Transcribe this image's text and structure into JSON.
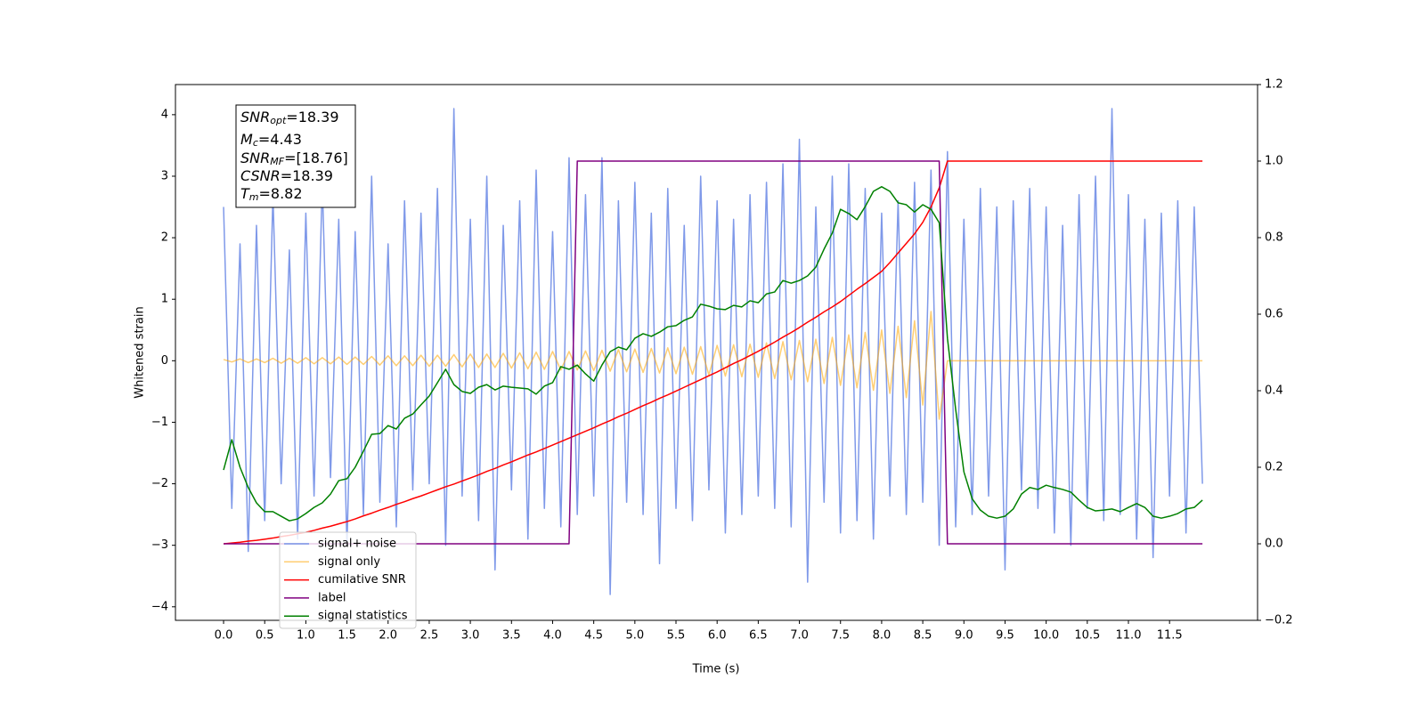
{
  "chart_data": {
    "type": "line",
    "xlabel": "Time (s)",
    "ylabel": "Whitened strain",
    "xlim": [
      -0.585,
      12.57
    ],
    "ylim": [
      -4.22,
      4.49
    ],
    "y2lim": [
      -0.2,
      1.2
    ],
    "xticks": [
      {
        "value": 0,
        "label": "0.0"
      },
      0.5,
      {
        "value": 1,
        "label": "1.0"
      },
      1.5,
      {
        "value": 2,
        "label": "2.0"
      },
      2.5,
      {
        "value": 3,
        "label": "3.0"
      },
      3.5,
      {
        "value": 4,
        "label": "4.0"
      },
      4.5,
      {
        "value": 5,
        "label": "5.0"
      },
      5.5,
      {
        "value": 6,
        "label": "6.0"
      },
      6.5,
      {
        "value": 7,
        "label": "7.0"
      },
      7.5,
      {
        "value": 8,
        "label": "8.0"
      },
      8.5,
      {
        "value": 9,
        "label": "9.0"
      },
      9.5,
      {
        "value": 10,
        "label": "10.0"
      },
      10.5,
      {
        "value": 11,
        "label": "11.0"
      },
      11.5
    ],
    "yticks": [
      {
        "value": -4,
        "label": "−4"
      },
      {
        "value": -3,
        "label": "−3"
      },
      {
        "value": -2,
        "label": "−2"
      },
      {
        "value": -1,
        "label": "−1"
      },
      0,
      1,
      2,
      3,
      4
    ],
    "y2ticks": [
      {
        "value": -0.2,
        "label": "−0.2"
      },
      {
        "value": 0,
        "label": "0.0"
      },
      0.2,
      0.4,
      0.6,
      0.8,
      {
        "value": 1,
        "label": "1.0"
      },
      1.2
    ],
    "legend": "lower left",
    "annotation": [
      {
        "main": "SNR",
        "sub": "opt",
        "text": "=18.39"
      },
      {
        "main": "M",
        "sub": "c",
        "text": "=4.43"
      },
      {
        "main": "SNR",
        "sub": "MF",
        "text": "=[18.76]"
      },
      {
        "main": "CSNR",
        "text": "=18.39"
      },
      {
        "main": "T",
        "sub": "m",
        "text": "=8.82"
      }
    ],
    "x": [
      0.0,
      0.1,
      0.2,
      0.3,
      0.4,
      0.5,
      0.6,
      0.7,
      0.8,
      0.9,
      1.0,
      1.1,
      1.2,
      1.3,
      1.4,
      1.5,
      1.6,
      1.7,
      1.8,
      1.9,
      2.0,
      2.1,
      2.2,
      2.3,
      2.4,
      2.5,
      2.6,
      2.7,
      2.8,
      2.9,
      3.0,
      3.1,
      3.2,
      3.3,
      3.4,
      3.5,
      3.6,
      3.7,
      3.8,
      3.9,
      4.0,
      4.1,
      4.2,
      4.3,
      4.4,
      4.5,
      4.6,
      4.7,
      4.8,
      4.9,
      5.0,
      5.1,
      5.2,
      5.3,
      5.4,
      5.5,
      5.6,
      5.7,
      5.8,
      5.9,
      6.0,
      6.1,
      6.2,
      6.3,
      6.4,
      6.5,
      6.6,
      6.7,
      6.8,
      6.9,
      7.0,
      7.1,
      7.2,
      7.3,
      7.4,
      7.5,
      7.6,
      7.7,
      7.8,
      7.9,
      8.0,
      8.1,
      8.2,
      8.3,
      8.4,
      8.5,
      8.6,
      8.7,
      8.8,
      8.9,
      9.0,
      9.1,
      9.2,
      9.3,
      9.4,
      9.5,
      9.6,
      9.7,
      9.8,
      9.9,
      10.0,
      10.1,
      10.2,
      10.3,
      10.4,
      10.5,
      10.6,
      10.7,
      10.8,
      10.9,
      11.0,
      11.1,
      11.2,
      11.3,
      11.4,
      11.5,
      11.6,
      11.7,
      11.8,
      11.9
    ],
    "series": [
      {
        "name": "signal+ noise",
        "color": "#7894e8",
        "values": [
          2.5,
          -2.4,
          1.9,
          -3.1,
          2.2,
          -2.6,
          2.7,
          -2.0,
          1.8,
          -2.9,
          2.4,
          -2.2,
          2.9,
          -1.9,
          2.3,
          -3.0,
          2.1,
          -2.5,
          3.0,
          -2.3,
          1.9,
          -2.7,
          2.6,
          -2.1,
          2.4,
          -2.0,
          2.8,
          -3.0,
          4.1,
          -2.2,
          2.3,
          -2.6,
          3.0,
          -3.4,
          2.2,
          -2.1,
          2.6,
          -2.9,
          3.1,
          -2.4,
          2.1,
          -2.7,
          3.3,
          -2.5,
          2.7,
          -2.2,
          3.3,
          -3.8,
          2.6,
          -2.3,
          2.9,
          -2.5,
          2.4,
          -3.3,
          2.8,
          -2.4,
          2.2,
          -2.6,
          3.0,
          -2.1,
          2.6,
          -2.8,
          2.3,
          -2.5,
          2.7,
          -2.2,
          2.9,
          -2.4,
          3.2,
          -2.7,
          3.6,
          -3.6,
          2.5,
          -2.3,
          3.0,
          -2.8,
          3.2,
          -2.6,
          2.8,
          -2.9,
          2.4,
          -2.2,
          2.6,
          -2.5,
          2.9,
          -2.3,
          3.1,
          -3.0,
          3.4,
          -2.7,
          2.3,
          -2.5,
          2.8,
          -2.2,
          2.5,
          -3.4,
          2.6,
          -2.1,
          2.8,
          -2.4,
          2.5,
          -2.8,
          2.2,
          -3.0,
          2.7,
          -2.4,
          3.0,
          -2.6,
          4.1,
          -2.5,
          2.7,
          -2.9,
          2.3,
          -3.2,
          2.4,
          -2.2,
          2.6,
          -2.8,
          2.5,
          -2.0
        ]
      },
      {
        "name": "signal only",
        "color": "#ffa500",
        "values": [
          0.02,
          -0.02,
          0.03,
          -0.03,
          0.03,
          -0.03,
          0.04,
          -0.04,
          0.04,
          -0.04,
          0.05,
          -0.05,
          0.05,
          -0.05,
          0.06,
          -0.06,
          0.06,
          -0.06,
          0.07,
          -0.07,
          0.08,
          -0.08,
          0.08,
          -0.08,
          0.09,
          -0.09,
          0.09,
          -0.09,
          0.1,
          -0.1,
          0.11,
          -0.11,
          0.11,
          -0.11,
          0.12,
          -0.12,
          0.13,
          -0.13,
          0.14,
          -0.14,
          0.15,
          -0.15,
          0.15,
          -0.15,
          0.16,
          -0.16,
          0.17,
          -0.17,
          0.18,
          -0.18,
          0.19,
          -0.19,
          0.2,
          -0.2,
          0.21,
          -0.21,
          0.22,
          -0.22,
          0.23,
          -0.23,
          0.25,
          -0.25,
          0.26,
          -0.26,
          0.27,
          -0.27,
          0.29,
          -0.29,
          0.31,
          -0.31,
          0.33,
          -0.34,
          0.35,
          -0.37,
          0.38,
          -0.4,
          0.42,
          -0.44,
          0.46,
          -0.48,
          0.5,
          -0.53,
          0.56,
          -0.6,
          0.65,
          -0.72,
          0.8,
          -0.95,
          0,
          0,
          0,
          0,
          0,
          0,
          0,
          0,
          0,
          0,
          0,
          0,
          0,
          0,
          0,
          0,
          0,
          0,
          0,
          0,
          0,
          0,
          0,
          0,
          0,
          0,
          0,
          0,
          0,
          0,
          0,
          0
        ]
      },
      {
        "name": "cumilative SNR",
        "color": "#ff0000",
        "axis": "y2",
        "values": [
          0,
          0.002,
          0.004,
          0.007,
          0.009,
          0.012,
          0.015,
          0.019,
          0.022,
          0.026,
          0.03,
          0.035,
          0.041,
          0.046,
          0.052,
          0.058,
          0.065,
          0.073,
          0.08,
          0.088,
          0.095,
          0.103,
          0.11,
          0.118,
          0.125,
          0.133,
          0.141,
          0.149,
          0.156,
          0.164,
          0.172,
          0.18,
          0.189,
          0.197,
          0.206,
          0.214,
          0.223,
          0.232,
          0.24,
          0.249,
          0.258,
          0.267,
          0.276,
          0.285,
          0.294,
          0.303,
          0.313,
          0.322,
          0.332,
          0.341,
          0.351,
          0.361,
          0.37,
          0.38,
          0.389,
          0.399,
          0.409,
          0.419,
          0.429,
          0.439,
          0.449,
          0.46,
          0.471,
          0.481,
          0.492,
          0.503,
          0.515,
          0.527,
          0.54,
          0.552,
          0.565,
          0.579,
          0.592,
          0.606,
          0.619,
          0.633,
          0.649,
          0.665,
          0.68,
          0.696,
          0.712,
          0.735,
          0.76,
          0.785,
          0.81,
          0.84,
          0.88,
          0.93,
          1,
          1,
          1,
          1,
          1,
          1,
          1,
          1,
          1,
          1,
          1,
          1,
          1,
          1,
          1,
          1,
          1,
          1,
          1,
          1,
          1,
          1,
          1,
          1,
          1,
          1,
          1,
          1,
          1,
          1,
          1,
          1
        ]
      },
      {
        "name": "label",
        "color": "#800080",
        "axis": "y2",
        "values": [
          0,
          0,
          0,
          0,
          0,
          0,
          0,
          0,
          0,
          0,
          0,
          0,
          0,
          0,
          0,
          0,
          0,
          0,
          0,
          0,
          0,
          0,
          0,
          0,
          0,
          0,
          0,
          0,
          0,
          0,
          0,
          0,
          0,
          0,
          0,
          0,
          0,
          0,
          0,
          0,
          0,
          0,
          0,
          1,
          1,
          1,
          1,
          1,
          1,
          1,
          1,
          1,
          1,
          1,
          1,
          1,
          1,
          1,
          1,
          1,
          1,
          1,
          1,
          1,
          1,
          1,
          1,
          1,
          1,
          1,
          1,
          1,
          1,
          1,
          1,
          1,
          1,
          1,
          1,
          1,
          1,
          1,
          1,
          1,
          1,
          1,
          1,
          1,
          0,
          0,
          0,
          0,
          0,
          0,
          0,
          0,
          0,
          0,
          0,
          0,
          0,
          0,
          0,
          0,
          0,
          0,
          0,
          0,
          0,
          0,
          0,
          0,
          0,
          0,
          0,
          0,
          0,
          0,
          0,
          0
        ]
      },
      {
        "name": "signal statistics",
        "color": "#008000",
        "axis": "y2",
        "values": [
          0.193,
          0.272,
          0.2,
          0.147,
          0.107,
          0.084,
          0.084,
          0.072,
          0.06,
          0.065,
          0.079,
          0.095,
          0.107,
          0.13,
          0.165,
          0.17,
          0.2,
          0.242,
          0.286,
          0.288,
          0.309,
          0.3,
          0.328,
          0.339,
          0.363,
          0.386,
          0.421,
          0.456,
          0.416,
          0.398,
          0.393,
          0.409,
          0.416,
          0.402,
          0.412,
          0.409,
          0.407,
          0.405,
          0.391,
          0.412,
          0.421,
          0.463,
          0.456,
          0.467,
          0.444,
          0.425,
          0.467,
          0.502,
          0.514,
          0.507,
          0.537,
          0.549,
          0.542,
          0.553,
          0.567,
          0.57,
          0.584,
          0.593,
          0.626,
          0.621,
          0.614,
          0.612,
          0.623,
          0.619,
          0.635,
          0.63,
          0.653,
          0.658,
          0.688,
          0.681,
          0.688,
          0.7,
          0.723,
          0.77,
          0.812,
          0.874,
          0.863,
          0.847,
          0.881,
          0.921,
          0.933,
          0.921,
          0.891,
          0.886,
          0.867,
          0.886,
          0.874,
          0.839,
          0.537,
          0.351,
          0.188,
          0.118,
          0.088,
          0.072,
          0.067,
          0.072,
          0.091,
          0.13,
          0.147,
          0.142,
          0.153,
          0.147,
          0.142,
          0.135,
          0.114,
          0.095,
          0.086,
          0.088,
          0.091,
          0.084,
          0.095,
          0.105,
          0.095,
          0.072,
          0.067,
          0.072,
          0.079,
          0.091,
          0.095,
          0.114
        ]
      }
    ]
  }
}
